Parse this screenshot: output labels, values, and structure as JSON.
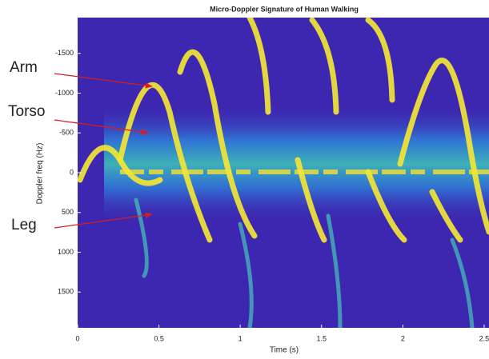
{
  "chart_data": {
    "type": "heatmap",
    "title": "Micro-Doppler Signature of Human Walking",
    "xlabel": "Time (s)",
    "ylabel": "Doppler freq (Hz)",
    "xlim": [
      0,
      2.53
    ],
    "xticks": [
      0,
      0.5,
      1,
      1.5,
      2,
      2.5
    ],
    "ylim": [
      1950,
      -1950
    ],
    "yticks": [
      -1500,
      -1000,
      -500,
      0,
      500,
      1000,
      1500
    ],
    "annotations": [
      "Arm",
      "Torso",
      "Leg"
    ]
  }
}
